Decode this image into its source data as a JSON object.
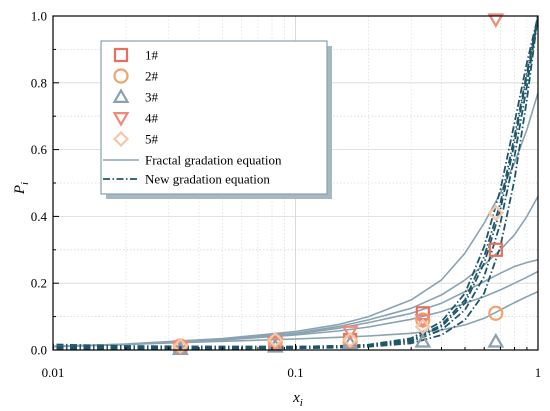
{
  "chart_data": {
    "type": "line",
    "xlabel": "x",
    "xlabel_sub": "i",
    "ylabel": "P",
    "ylabel_sub": "i",
    "x_scale": "log",
    "xlim": [
      0.01,
      1
    ],
    "ylim": [
      0,
      1.0
    ],
    "grid": true,
    "legend_position": "top-left",
    "x_ticks": [
      {
        "value": 0.01,
        "label": "0.01"
      },
      {
        "value": 0.1,
        "label": "0.1"
      },
      {
        "value": 1,
        "label": "1"
      }
    ],
    "y_ticks": [
      {
        "value": 0.0,
        "label": "0.0"
      },
      {
        "value": 0.2,
        "label": "0.2"
      },
      {
        "value": 0.4,
        "label": "0.4"
      },
      {
        "value": 0.6,
        "label": "0.6"
      },
      {
        "value": 0.8,
        "label": "0.8"
      },
      {
        "value": 1.0,
        "label": "1.0"
      }
    ],
    "x_sample": [
      0.008,
      0.02,
      0.05,
      0.1,
      0.15,
      0.2,
      0.3,
      0.4,
      0.5,
      0.6,
      0.7,
      0.8,
      0.9,
      1.0
    ],
    "series": [
      {
        "name": "1#",
        "marker": "square",
        "color": "#e8705a",
        "points": [
          [
            0.0335,
            0.008
          ],
          [
            0.0825,
            0.02
          ],
          [
            0.168,
            0.03
          ],
          [
            0.335,
            0.11
          ],
          [
            0.67,
            0.3
          ]
        ]
      },
      {
        "name": "2#",
        "marker": "circle",
        "color": "#f0a36a",
        "points": [
          [
            0.0335,
            0.012
          ],
          [
            0.0825,
            0.025
          ],
          [
            0.168,
            0.025
          ],
          [
            0.335,
            0.09
          ],
          [
            0.67,
            0.11
          ]
        ]
      },
      {
        "name": "3#",
        "marker": "triangle-up",
        "color": "#8aa0b0",
        "points": [
          [
            0.0335,
            0.003
          ],
          [
            0.0825,
            0.01
          ],
          [
            0.168,
            0.02
          ],
          [
            0.335,
            0.025
          ],
          [
            0.67,
            0.025
          ]
        ]
      },
      {
        "name": "4#",
        "marker": "triangle-down",
        "color": "#f08a78",
        "points": [
          [
            0.0335,
            0.01
          ],
          [
            0.0825,
            0.02
          ],
          [
            0.168,
            0.055
          ],
          [
            0.335,
            0.09
          ],
          [
            0.67,
            0.99
          ]
        ]
      },
      {
        "name": "5#",
        "marker": "diamond",
        "color": "#f5c7a6",
        "points": [
          [
            0.0335,
            0.012
          ],
          [
            0.0825,
            0.03
          ],
          [
            0.168,
            0.03
          ],
          [
            0.335,
            0.07
          ],
          [
            0.67,
            0.41
          ]
        ]
      }
    ],
    "fractal_curves": {
      "name": "Fractal gradation equation",
      "color": "#8aa3b3",
      "style": "solid",
      "curves": [
        [
          0.008,
          0.017,
          0.026,
          0.033,
          0.038,
          0.042,
          0.05,
          0.06,
          0.075,
          0.095,
          0.12,
          0.142,
          0.16,
          0.175
        ],
        [
          0.008,
          0.016,
          0.03,
          0.045,
          0.057,
          0.069,
          0.092,
          0.115,
          0.14,
          0.16,
          0.18,
          0.2,
          0.218,
          0.235
        ],
        [
          0.01,
          0.017,
          0.03,
          0.048,
          0.065,
          0.082,
          0.11,
          0.14,
          0.175,
          0.205,
          0.23,
          0.25,
          0.262,
          0.27
        ],
        [
          0.008,
          0.017,
          0.033,
          0.05,
          0.07,
          0.09,
          0.125,
          0.165,
          0.21,
          0.255,
          0.3,
          0.345,
          0.4,
          0.46
        ],
        [
          0.008,
          0.018,
          0.034,
          0.055,
          0.076,
          0.1,
          0.15,
          0.21,
          0.29,
          0.38,
          0.47,
          0.56,
          0.66,
          0.77
        ]
      ]
    },
    "new_curves": {
      "name": "New gradation equation",
      "color": "#1f5669",
      "style": "dash-dot",
      "curves": [
        [
          0.008,
          0.008,
          0.008,
          0.008,
          0.01,
          0.012,
          0.025,
          0.06,
          0.12,
          0.22,
          0.38,
          0.58,
          0.79,
          1.0
        ],
        [
          0.01,
          0.01,
          0.01,
          0.01,
          0.012,
          0.015,
          0.03,
          0.075,
          0.15,
          0.28,
          0.44,
          0.64,
          0.83,
          1.0
        ],
        [
          0.004,
          0.004,
          0.004,
          0.005,
          0.007,
          0.01,
          0.02,
          0.045,
          0.09,
          0.17,
          0.31,
          0.51,
          0.75,
          1.0
        ],
        [
          0.006,
          0.006,
          0.006,
          0.007,
          0.009,
          0.012,
          0.028,
          0.07,
          0.14,
          0.26,
          0.42,
          0.62,
          0.82,
          1.0
        ],
        [
          0.018,
          0.012,
          0.01,
          0.01,
          0.012,
          0.016,
          0.035,
          0.085,
          0.17,
          0.31,
          0.48,
          0.68,
          0.86,
          1.0
        ]
      ]
    }
  }
}
